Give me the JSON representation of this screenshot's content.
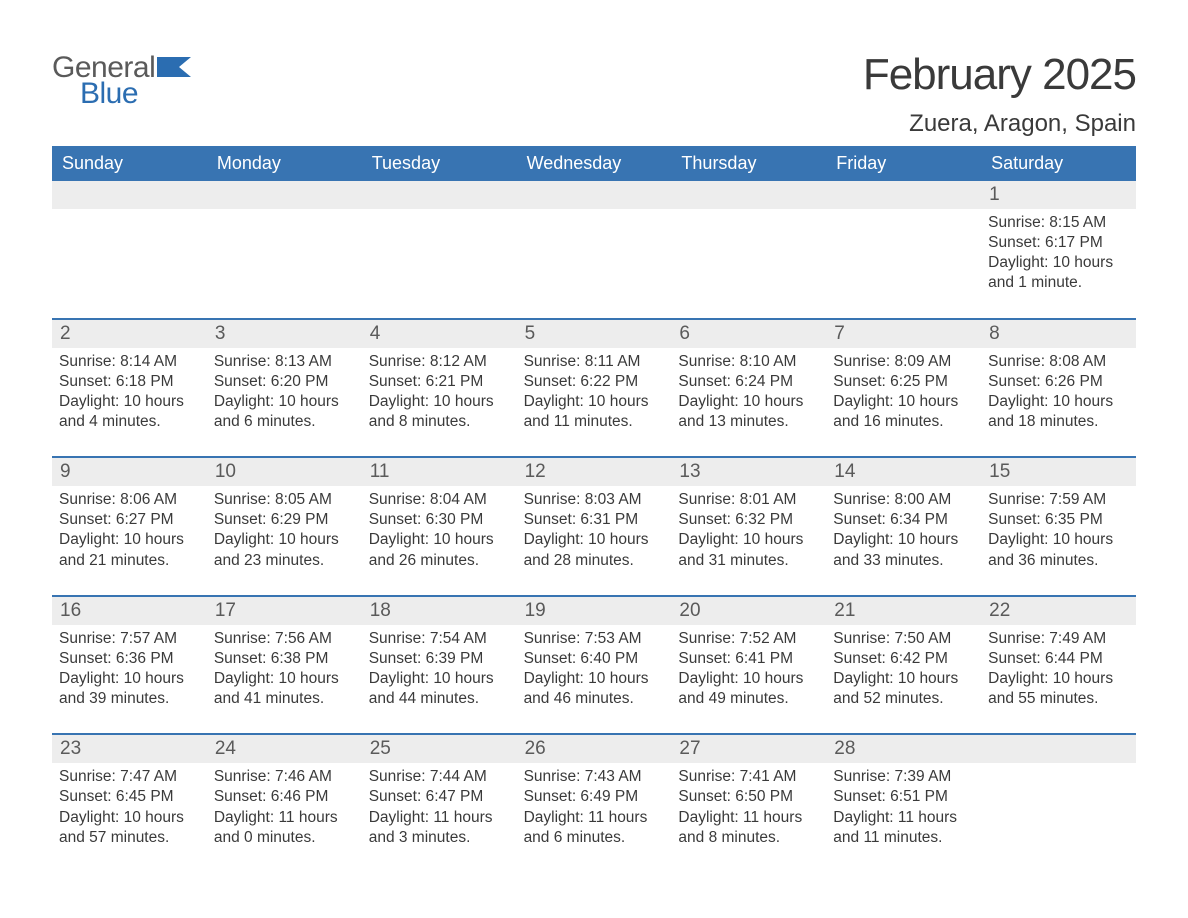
{
  "logo": {
    "general": "General",
    "blue": "Blue"
  },
  "title": "February 2025",
  "location": "Zuera, Aragon, Spain",
  "colors": {
    "header_bg": "#3874b2",
    "header_text": "#ffffff",
    "daynum_bg": "#ededed",
    "body_text": "#3a3a3a",
    "rule": "#3874b2",
    "page_bg": "#ffffff",
    "logo_gray": "#5a5a5a",
    "logo_blue": "#2b6db1"
  },
  "typography": {
    "title_fontsize": 44,
    "location_fontsize": 24,
    "weekday_fontsize": 18,
    "daynum_fontsize": 19,
    "body_fontsize": 15.5,
    "font_family": "Arial"
  },
  "weekdays": [
    "Sunday",
    "Monday",
    "Tuesday",
    "Wednesday",
    "Thursday",
    "Friday",
    "Saturday"
  ],
  "weeks": [
    [
      null,
      null,
      null,
      null,
      null,
      null,
      {
        "n": "1",
        "sunrise": "8:15 AM",
        "sunset": "6:17 PM",
        "dl": "10 hours and 1 minute."
      }
    ],
    [
      {
        "n": "2",
        "sunrise": "8:14 AM",
        "sunset": "6:18 PM",
        "dl": "10 hours and 4 minutes."
      },
      {
        "n": "3",
        "sunrise": "8:13 AM",
        "sunset": "6:20 PM",
        "dl": "10 hours and 6 minutes."
      },
      {
        "n": "4",
        "sunrise": "8:12 AM",
        "sunset": "6:21 PM",
        "dl": "10 hours and 8 minutes."
      },
      {
        "n": "5",
        "sunrise": "8:11 AM",
        "sunset": "6:22 PM",
        "dl": "10 hours and 11 minutes."
      },
      {
        "n": "6",
        "sunrise": "8:10 AM",
        "sunset": "6:24 PM",
        "dl": "10 hours and 13 minutes."
      },
      {
        "n": "7",
        "sunrise": "8:09 AM",
        "sunset": "6:25 PM",
        "dl": "10 hours and 16 minutes."
      },
      {
        "n": "8",
        "sunrise": "8:08 AM",
        "sunset": "6:26 PM",
        "dl": "10 hours and 18 minutes."
      }
    ],
    [
      {
        "n": "9",
        "sunrise": "8:06 AM",
        "sunset": "6:27 PM",
        "dl": "10 hours and 21 minutes."
      },
      {
        "n": "10",
        "sunrise": "8:05 AM",
        "sunset": "6:29 PM",
        "dl": "10 hours and 23 minutes."
      },
      {
        "n": "11",
        "sunrise": "8:04 AM",
        "sunset": "6:30 PM",
        "dl": "10 hours and 26 minutes."
      },
      {
        "n": "12",
        "sunrise": "8:03 AM",
        "sunset": "6:31 PM",
        "dl": "10 hours and 28 minutes."
      },
      {
        "n": "13",
        "sunrise": "8:01 AM",
        "sunset": "6:32 PM",
        "dl": "10 hours and 31 minutes."
      },
      {
        "n": "14",
        "sunrise": "8:00 AM",
        "sunset": "6:34 PM",
        "dl": "10 hours and 33 minutes."
      },
      {
        "n": "15",
        "sunrise": "7:59 AM",
        "sunset": "6:35 PM",
        "dl": "10 hours and 36 minutes."
      }
    ],
    [
      {
        "n": "16",
        "sunrise": "7:57 AM",
        "sunset": "6:36 PM",
        "dl": "10 hours and 39 minutes."
      },
      {
        "n": "17",
        "sunrise": "7:56 AM",
        "sunset": "6:38 PM",
        "dl": "10 hours and 41 minutes."
      },
      {
        "n": "18",
        "sunrise": "7:54 AM",
        "sunset": "6:39 PM",
        "dl": "10 hours and 44 minutes."
      },
      {
        "n": "19",
        "sunrise": "7:53 AM",
        "sunset": "6:40 PM",
        "dl": "10 hours and 46 minutes."
      },
      {
        "n": "20",
        "sunrise": "7:52 AM",
        "sunset": "6:41 PM",
        "dl": "10 hours and 49 minutes."
      },
      {
        "n": "21",
        "sunrise": "7:50 AM",
        "sunset": "6:42 PM",
        "dl": "10 hours and 52 minutes."
      },
      {
        "n": "22",
        "sunrise": "7:49 AM",
        "sunset": "6:44 PM",
        "dl": "10 hours and 55 minutes."
      }
    ],
    [
      {
        "n": "23",
        "sunrise": "7:47 AM",
        "sunset": "6:45 PM",
        "dl": "10 hours and 57 minutes."
      },
      {
        "n": "24",
        "sunrise": "7:46 AM",
        "sunset": "6:46 PM",
        "dl": "11 hours and 0 minutes."
      },
      {
        "n": "25",
        "sunrise": "7:44 AM",
        "sunset": "6:47 PM",
        "dl": "11 hours and 3 minutes."
      },
      {
        "n": "26",
        "sunrise": "7:43 AM",
        "sunset": "6:49 PM",
        "dl": "11 hours and 6 minutes."
      },
      {
        "n": "27",
        "sunrise": "7:41 AM",
        "sunset": "6:50 PM",
        "dl": "11 hours and 8 minutes."
      },
      {
        "n": "28",
        "sunrise": "7:39 AM",
        "sunset": "6:51 PM",
        "dl": "11 hours and 11 minutes."
      },
      null
    ]
  ],
  "labels": {
    "sunrise_prefix": "Sunrise: ",
    "sunset_prefix": "Sunset: ",
    "daylight_prefix": "Daylight: "
  }
}
